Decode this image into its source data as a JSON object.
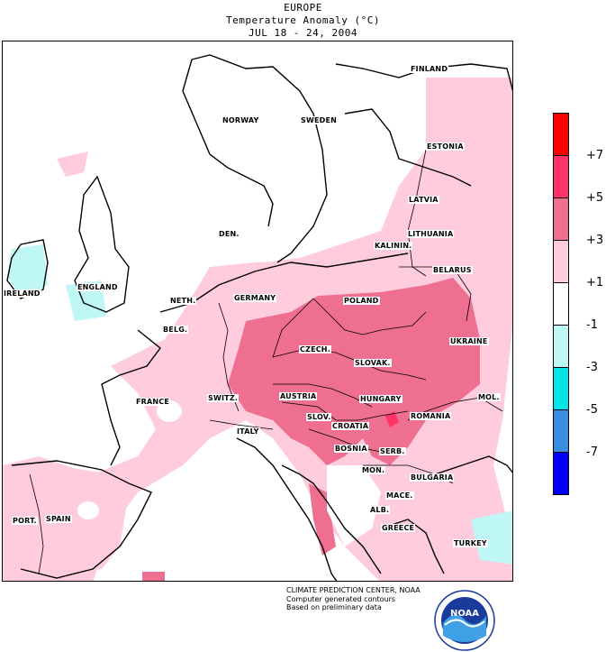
{
  "header": {
    "region": "EUROPE",
    "subtitle": "Temperature Anomaly (°C)",
    "period": "JUL 18 - 24, 2004"
  },
  "countries": [
    {
      "name": "FINLAND"
    },
    {
      "name": "NORWAY"
    },
    {
      "name": "SWEDEN"
    },
    {
      "name": "ESTONIA"
    },
    {
      "name": "LATVIA"
    },
    {
      "name": "DEN."
    },
    {
      "name": "LITHUANIA"
    },
    {
      "name": "KALININ."
    },
    {
      "name": "BELARUS"
    },
    {
      "name": "ENGLAND"
    },
    {
      "name": "IRELAND"
    },
    {
      "name": "NETH."
    },
    {
      "name": "GERMANY"
    },
    {
      "name": "POLAND"
    },
    {
      "name": "BELG."
    },
    {
      "name": "CZECH."
    },
    {
      "name": "UKRAINE"
    },
    {
      "name": "SLOVAK."
    },
    {
      "name": "AUSTRIA"
    },
    {
      "name": "HUNGARY"
    },
    {
      "name": "FRANCE"
    },
    {
      "name": "SWITZ."
    },
    {
      "name": "MOL."
    },
    {
      "name": "SLOV."
    },
    {
      "name": "CROATIA"
    },
    {
      "name": "ROMANIA"
    },
    {
      "name": "ITALY"
    },
    {
      "name": "BOSNIA"
    },
    {
      "name": "SERB."
    },
    {
      "name": "MON."
    },
    {
      "name": "BULGARIA"
    },
    {
      "name": "MACE."
    },
    {
      "name": "PORT."
    },
    {
      "name": "SPAIN"
    },
    {
      "name": "ALB."
    },
    {
      "name": "GREECE"
    },
    {
      "name": "TURKEY"
    }
  ],
  "legend": {
    "bins": [
      {
        "color": "#ff0000"
      },
      {
        "color": "#ff3366"
      },
      {
        "color": "#ee6f8f"
      },
      {
        "color": "#ffccdd"
      },
      {
        "color": "#ffffff"
      },
      {
        "color": "#bff7f7"
      },
      {
        "color": "#00e5e5"
      },
      {
        "color": "#3a8de0"
      },
      {
        "color": "#0000ff"
      }
    ],
    "ticks": [
      "+7",
      "+5",
      "+3",
      "+1",
      "-1",
      "-3",
      "-5",
      "-7"
    ]
  },
  "credits": {
    "line1": "CLIMATE PREDICTION CENTER, NOAA",
    "line2": "Computer generated contours",
    "line3": "Based on preliminary data"
  },
  "logo": {
    "text": "NOAA"
  }
}
